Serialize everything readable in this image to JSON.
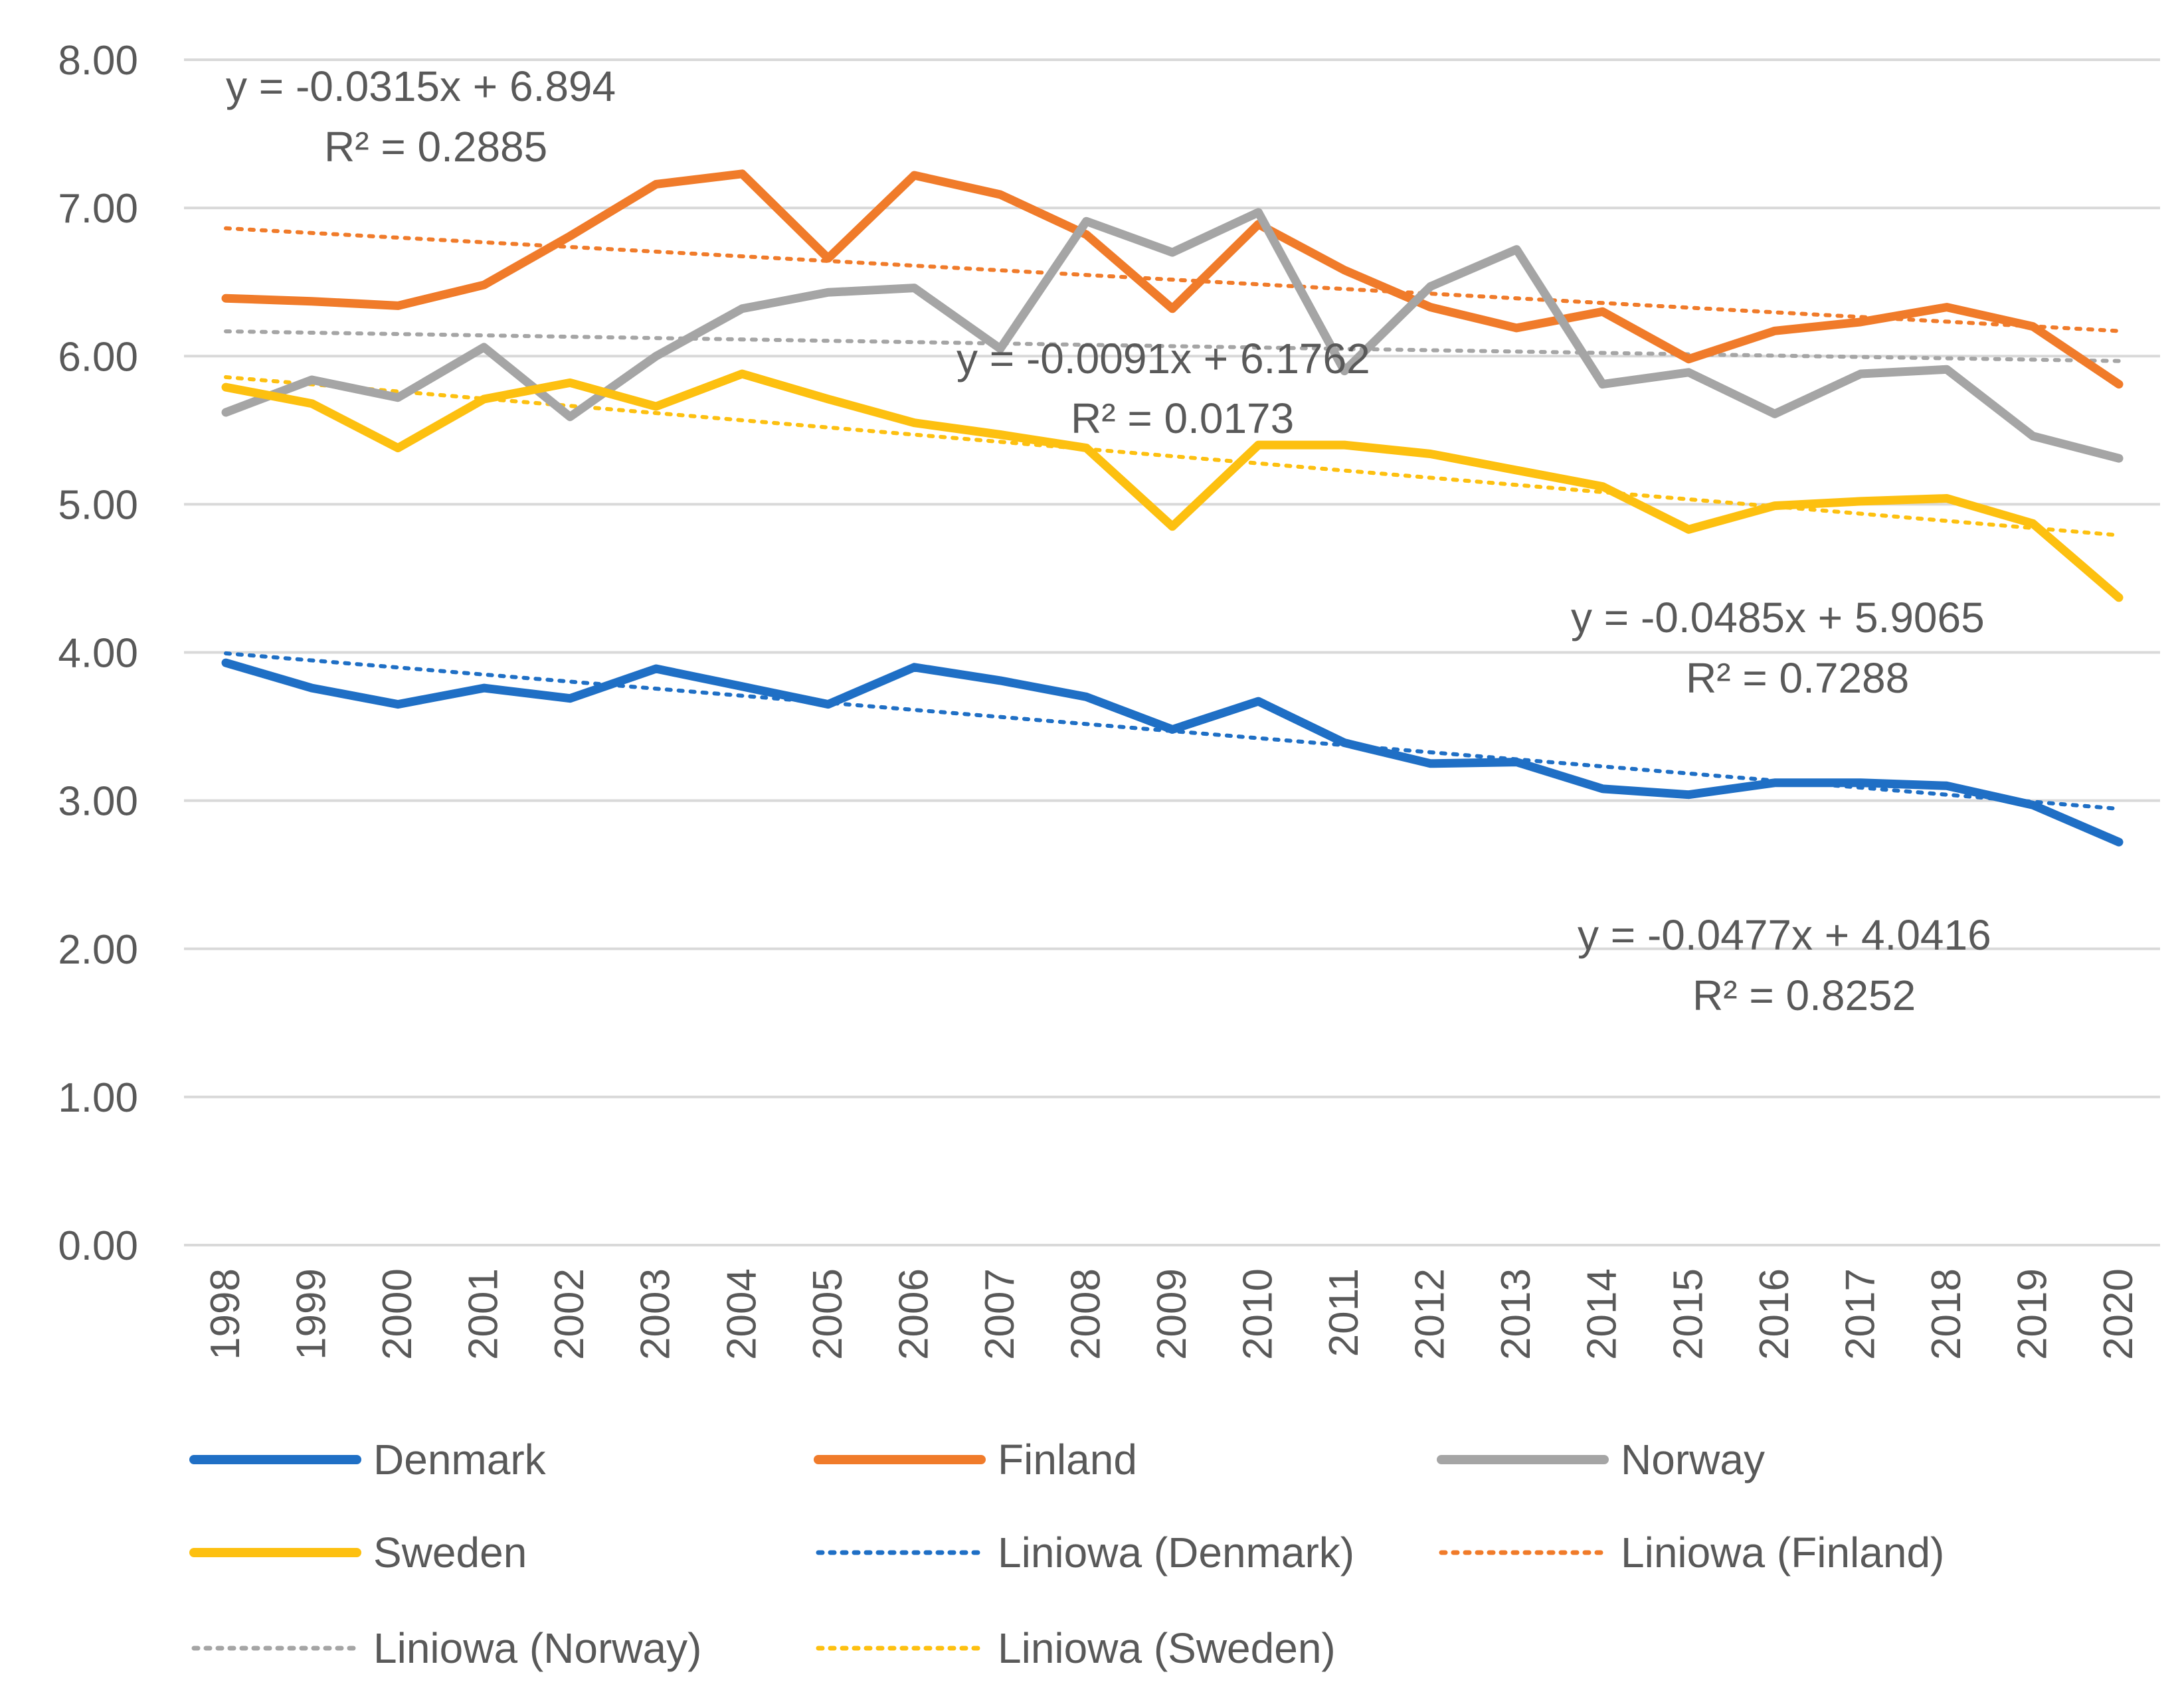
{
  "chart_data": {
    "type": "line",
    "title": "",
    "xlabel": "",
    "ylabel": "",
    "ylim": [
      0,
      8
    ],
    "yticks": [
      0,
      1,
      2,
      3,
      4,
      5,
      6,
      7,
      8
    ],
    "ytick_labels": [
      "0.00",
      "1.00",
      "2.00",
      "3.00",
      "4.00",
      "5.00",
      "6.00",
      "7.00",
      "8.00"
    ],
    "grid": "horizontal",
    "legend_position": "bottom",
    "categories": [
      "1998",
      "1999",
      "2000",
      "2001",
      "2002",
      "2003",
      "2004",
      "2005",
      "2006",
      "2007",
      "2008",
      "2009",
      "2010",
      "2011",
      "2012",
      "2013",
      "2014",
      "2015",
      "2016",
      "2017",
      "2018",
      "2019",
      "2020"
    ],
    "series": [
      {
        "name": "Denmark",
        "color": "#1f6fc5",
        "values": [
          3.93,
          3.76,
          3.65,
          3.76,
          3.69,
          3.89,
          3.77,
          3.65,
          3.9,
          3.81,
          3.7,
          3.48,
          3.67,
          3.39,
          3.25,
          3.26,
          3.08,
          3.04,
          3.12,
          3.12,
          3.1,
          2.97,
          2.72
        ]
      },
      {
        "name": "Finland",
        "color": "#f07b2a",
        "values": [
          6.39,
          6.37,
          6.34,
          6.48,
          6.81,
          7.16,
          7.23,
          6.66,
          7.22,
          7.09,
          6.82,
          6.32,
          6.89,
          6.58,
          6.33,
          6.19,
          6.3,
          5.98,
          6.17,
          6.23,
          6.33,
          6.2,
          5.81
        ]
      },
      {
        "name": "Norway",
        "color": "#a5a5a5",
        "values": [
          5.62,
          5.84,
          5.72,
          6.06,
          5.59,
          6.0,
          6.32,
          6.43,
          6.46,
          6.05,
          6.91,
          6.7,
          6.97,
          5.9,
          6.47,
          6.72,
          5.81,
          5.89,
          5.61,
          5.88,
          5.91,
          5.46,
          5.31
        ]
      },
      {
        "name": "Sweden",
        "color": "#fdc010",
        "values": [
          5.79,
          5.68,
          5.38,
          5.71,
          5.82,
          5.66,
          5.88,
          5.71,
          5.55,
          5.47,
          5.38,
          4.85,
          5.4,
          5.4,
          5.34,
          5.23,
          5.12,
          4.83,
          4.99,
          5.02,
          5.04,
          4.87,
          4.37
        ]
      }
    ],
    "trendlines": [
      {
        "name": "Liniowa (Denmark)",
        "of_series": "Denmark",
        "color": "#1f6fc5",
        "slope": -0.0477,
        "intercept": 4.0416,
        "equation": "y = -0.0477x + 4.0416",
        "r2": "R² = 0.8252",
        "label_anchor": "lower-right"
      },
      {
        "name": "Liniowa (Finland)",
        "of_series": "Finland",
        "color": "#f07b2a",
        "slope": -0.0315,
        "intercept": 6.894,
        "equation": "y = -0.0315x + 6.894",
        "r2": "R² = 0.2885",
        "label_anchor": "top-left"
      },
      {
        "name": "Liniowa (Norway)",
        "of_series": "Norway",
        "color": "#a5a5a5",
        "slope": -0.0091,
        "intercept": 6.1762,
        "equation": "y = -0.0091x + 6.1762",
        "r2": "R² = 0.0173",
        "label_anchor": "center"
      },
      {
        "name": "Liniowa (Sweden)",
        "of_series": "Sweden",
        "color": "#fdc010",
        "slope": -0.0485,
        "intercept": 5.9065,
        "equation": "y = -0.0485x + 5.9065",
        "r2": "R² = 0.7288",
        "label_anchor": "right"
      }
    ],
    "legend": [
      {
        "label": "Denmark",
        "style": "solid",
        "color": "#1f6fc5"
      },
      {
        "label": "Finland",
        "style": "solid",
        "color": "#f07b2a"
      },
      {
        "label": "Norway",
        "style": "solid",
        "color": "#a5a5a5"
      },
      {
        "label": "Sweden",
        "style": "solid",
        "color": "#fdc010"
      },
      {
        "label": "Liniowa (Denmark)",
        "style": "dotted",
        "color": "#1f6fc5"
      },
      {
        "label": "Liniowa (Finland)",
        "style": "dotted",
        "color": "#f07b2a"
      },
      {
        "label": "Liniowa (Norway)",
        "style": "dotted",
        "color": "#a5a5a5"
      },
      {
        "label": "Liniowa (Sweden)",
        "style": "dotted",
        "color": "#fdc010"
      }
    ]
  }
}
